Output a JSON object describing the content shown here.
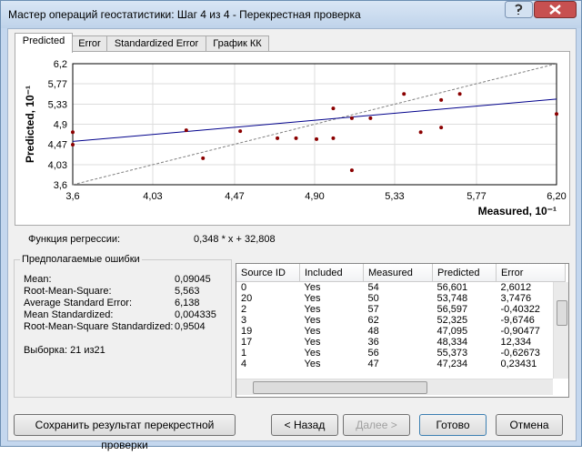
{
  "window": {
    "title": "Мастер операций геостатистики: Шаг 4 из 4 - Перекрестная проверка"
  },
  "tabs": [
    "Predicted",
    "Error",
    "Standardized Error",
    "График КК"
  ],
  "chart_data": {
    "type": "scatter",
    "x_label": "Measured, 10⁻¹",
    "y_label": "Predicted, 10⁻¹",
    "xlim": [
      3.6,
      6.2
    ],
    "ylim": [
      3.6,
      6.2
    ],
    "xticks": [
      {
        "value": 3.6,
        "label": "3,6"
      },
      {
        "value": 4.03,
        "label": "4,03"
      },
      {
        "value": 4.47,
        "label": "4,47"
      },
      {
        "value": 4.9,
        "label": "4,90"
      },
      {
        "value": 5.33,
        "label": "5,33"
      },
      {
        "value": 5.77,
        "label": "5,77"
      },
      {
        "value": 6.2,
        "label": "6,20"
      }
    ],
    "yticks": [
      {
        "value": 3.6,
        "label": "3,6"
      },
      {
        "value": 4.03,
        "label": "4,03"
      },
      {
        "value": 4.47,
        "label": "4,47"
      },
      {
        "value": 4.9,
        "label": "4,9"
      },
      {
        "value": 5.33,
        "label": "5,33"
      },
      {
        "value": 5.77,
        "label": "5,77"
      },
      {
        "value": 6.2,
        "label": "6,2"
      }
    ],
    "grid": true,
    "color": "#8b0000",
    "x": [
      3.6,
      3.6,
      4.21,
      4.3,
      4.5,
      4.7,
      4.8,
      4.91,
      5.0,
      5.0,
      5.1,
      5.1,
      5.2,
      5.38,
      5.47,
      5.58,
      5.58,
      5.68,
      6.2
    ],
    "values": [
      4.73,
      4.46,
      4.77,
      4.17,
      4.75,
      4.6,
      4.6,
      4.58,
      4.6,
      5.24,
      5.03,
      3.91,
      5.03,
      5.55,
      4.73,
      4.83,
      5.42,
      5.55,
      5.12
    ],
    "regression_line": {
      "x": [
        3.6,
        6.2
      ],
      "values": [
        4.53,
        5.44
      ],
      "color": "#00008b"
    },
    "reference_line": {
      "x": [
        3.6,
        6.2
      ],
      "values": [
        3.6,
        6.2
      ],
      "color": "#808080"
    }
  },
  "regression": {
    "label": "Функция регрессии:",
    "formula": "0,348 * x + 32,808"
  },
  "errors": {
    "title": "Предполагаемые ошибки",
    "rows": [
      [
        "Mean:",
        "0,09045"
      ],
      [
        "Root-Mean-Square:",
        "5,563"
      ],
      [
        "Average Standard Error:",
        "6,138"
      ],
      [
        "Mean Standardized:",
        "0,004335"
      ],
      [
        "Root-Mean-Square Standardized:",
        "0,9504"
      ]
    ],
    "sample": "Выборка: 21 из21"
  },
  "table": {
    "columns": [
      "Source ID",
      "Included",
      "Measured",
      "Predicted",
      "Error"
    ],
    "rows": [
      [
        "0",
        "Yes",
        "54",
        "56,601",
        "2,6012"
      ],
      [
        "20",
        "Yes",
        "50",
        "53,748",
        "3,7476"
      ],
      [
        "2",
        "Yes",
        "57",
        "56,597",
        "-0,40322"
      ],
      [
        "3",
        "Yes",
        "62",
        "52,325",
        "-9,6746"
      ],
      [
        "19",
        "Yes",
        "48",
        "47,095",
        "-0,90477"
      ],
      [
        "17",
        "Yes",
        "36",
        "48,334",
        "12,334"
      ],
      [
        "1",
        "Yes",
        "56",
        "55,373",
        "-0,62673"
      ],
      [
        "4",
        "Yes",
        "47",
        "47,234",
        "0,23431"
      ]
    ]
  },
  "buttons": {
    "save": "Сохранить результат перекрестной проверки",
    "back": "< Назад",
    "next": "Далее >",
    "finish": "Готово",
    "cancel": "Отмена"
  }
}
